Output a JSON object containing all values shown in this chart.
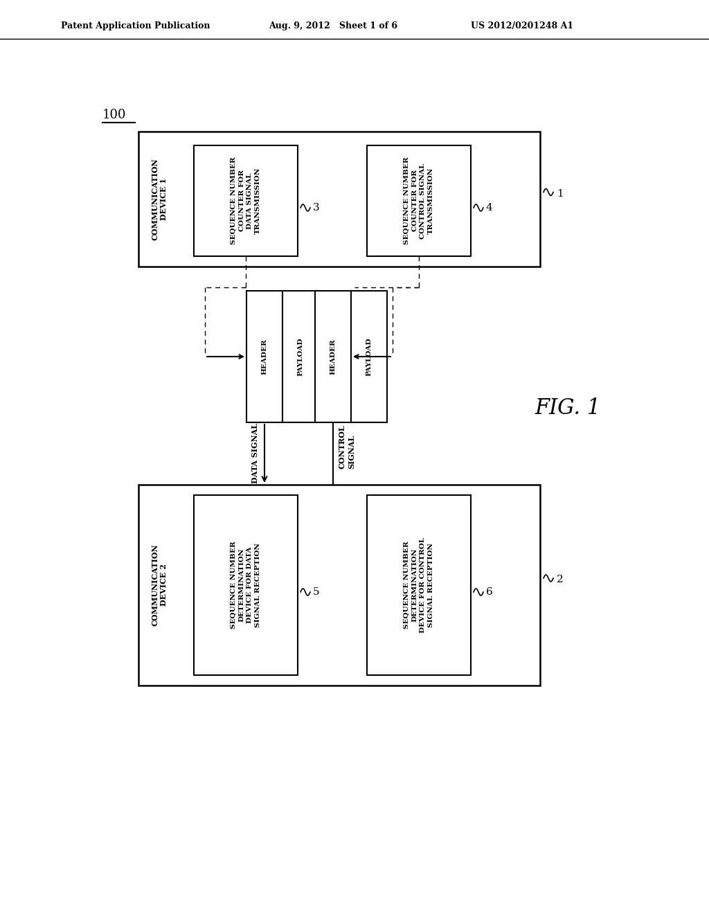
{
  "bg_color": "#ffffff",
  "header_text_left": "Patent Application Publication",
  "header_text_mid": "Aug. 9, 2012   Sheet 1 of 6",
  "header_text_right": "US 2012/0201248 A1",
  "fig_label": "FIG. 1",
  "system_label": "100",
  "device1_label": "COMMUNICATION\nDEVICE 1",
  "device2_label": "COMMUNICATION\nDEVICE 2",
  "box3_label": "SEQUENCE NUMBER\nCOUNTER FOR\nDATA SIGNAL\nTRANSMISSION",
  "box4_label": "SEQUENCE NUMBER\nCOUNTER FOR\nCONTROL SIGNAL\nTRANSMISSION",
  "box5_label": "SEQUENCE NUMBER\nDETERMINATION\nDEVICE FOR DATA\nSIGNAL RECEPTION",
  "box6_label": "SEQUENCE NUMBER\nDETERMINATION\nDEVICE FOR CONTROL\nSIGNAL RECEPTION",
  "label3": "3",
  "label4": "4",
  "label5": "5",
  "label6": "6",
  "label1": "1",
  "label2": "2",
  "data_signal_label": "DATA SIGNAL",
  "control_signal_label": "CONTROL\nSIGNAL",
  "header_label": "HEADER",
  "payload_label": "PAYLOAD",
  "header2_label": "HEADER",
  "payload2_label": "PAYLOAD"
}
